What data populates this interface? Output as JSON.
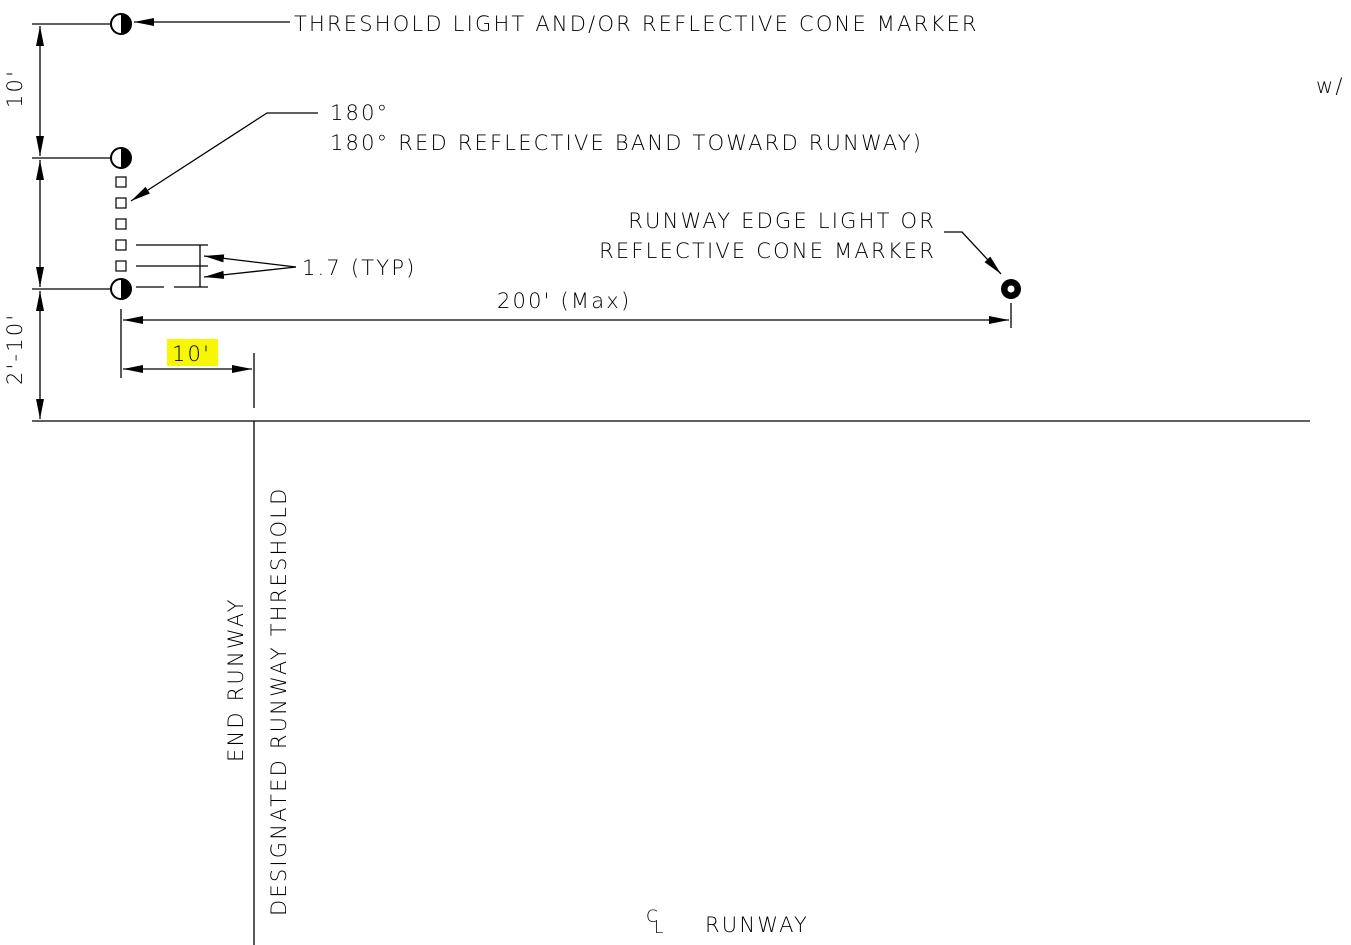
{
  "labels": {
    "threshold_light": "THRESHOLD LIGHT AND/OR REFLECTIVE CONE MARKER",
    "w_slash": "w/",
    "angle_top": "180°",
    "red_band": "180° RED REFLECTIVE BAND TOWARD RUNWAY)",
    "edge_light_line1": "RUNWAY EDGE LIGHT OR",
    "edge_light_line2": "REFLECTIVE CONE MARKER",
    "spacing_typ": "1.7 (TYP)",
    "dim_200_max": "200' (Max)",
    "dim_10_highlighted": "10'",
    "dim_10_vertical": "10'",
    "dim_2_10": "2'-10'",
    "end_runway": "END RUNWAY",
    "designated_threshold": "DESIGNATED RUNWAY THRESHOLD",
    "centerline_symbol": "CL",
    "runway": "RUNWAY"
  },
  "colors": {
    "line": "#000000",
    "highlight": "#f7f700",
    "background": "#ffffff"
  }
}
